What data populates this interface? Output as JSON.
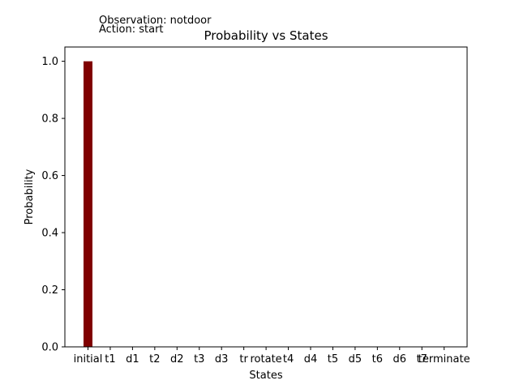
{
  "annotations": {
    "observation": "Observation: notdoor",
    "action": "Action: start"
  },
  "chart_data": {
    "type": "bar",
    "title": "Probability vs States",
    "xlabel": "States",
    "ylabel": "Probability",
    "categories": [
      "initial",
      "t1",
      "d1",
      "t2",
      "d2",
      "t3",
      "d3",
      "tr",
      "rotate",
      "t4",
      "d4",
      "t5",
      "d5",
      "t6",
      "d6",
      "t7",
      "terminate"
    ],
    "values": [
      1.0,
      0,
      0,
      0,
      0,
      0,
      0,
      0,
      0,
      0,
      0,
      0,
      0,
      0,
      0,
      0,
      0
    ],
    "ylim": [
      0,
      1.05
    ],
    "yticks": [
      "0.0",
      "0.2",
      "0.4",
      "0.6",
      "0.8",
      "1.0"
    ],
    "bar_color": "#800000",
    "grid": false,
    "legend": "none"
  }
}
